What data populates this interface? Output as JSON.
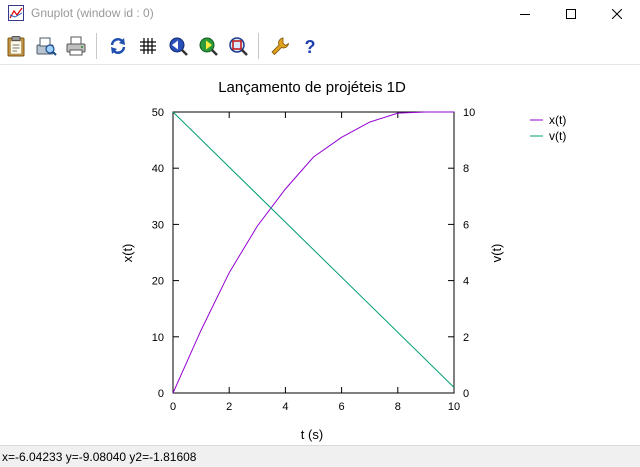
{
  "window": {
    "title": "Gnuplot (window id : 0)"
  },
  "toolbar": {
    "buttons": [
      "clipboard-icon",
      "print-preview-icon",
      "print-icon",
      "replot-icon",
      "grid-icon",
      "zoom-previous-icon",
      "zoom-next-icon",
      "unzoom-icon",
      "options-icon",
      "help-icon"
    ]
  },
  "chart_data": {
    "type": "line",
    "title": "Lançamento de projéteis 1D",
    "xlabel": "t (s)",
    "ylabel": "x(t)",
    "y2label": "v(t)",
    "xlim": [
      0,
      10
    ],
    "ylim": [
      0,
      50
    ],
    "y2lim": [
      0,
      10
    ],
    "xticks": [
      "0",
      "2",
      "4",
      "6",
      "8",
      "10"
    ],
    "yticks": [
      "0",
      "10",
      "20",
      "30",
      "40",
      "50"
    ],
    "y2ticks": [
      "0",
      "2",
      "4",
      "6",
      "8",
      "10"
    ],
    "legend_position": "outside-top-right",
    "grid": false,
    "series": [
      {
        "name": "x(t)",
        "axis": "y1",
        "color": "#9400d3",
        "x": [
          0,
          1,
          2,
          3,
          4,
          5,
          6,
          7,
          8,
          9,
          10
        ],
        "y": [
          0,
          11.2,
          21.4,
          29.7,
          36.3,
          42.0,
          45.5,
          48.2,
          49.8,
          50,
          50
        ]
      },
      {
        "name": "v(t)",
        "axis": "y2",
        "color": "#009e73",
        "x": [
          0,
          10
        ],
        "y": [
          10,
          0.2
        ]
      }
    ]
  },
  "status": {
    "text": "x=-6.04233 y=-9.08040 y2=-1.81608"
  }
}
